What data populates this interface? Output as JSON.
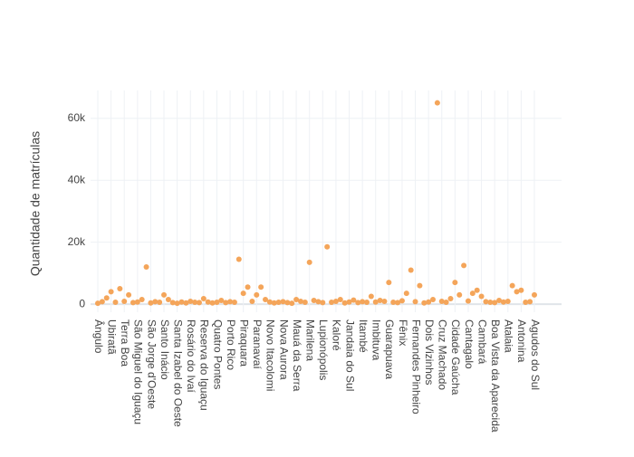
{
  "chart_data": {
    "type": "scatter",
    "y_label": "Quantidade de matrículas",
    "categories": [
      "Ângulo",
      null,
      null,
      "Ubiratã",
      null,
      null,
      "Terra Boa",
      null,
      null,
      "São Miguel do Iguaçu",
      null,
      null,
      "São Jorge d'Oeste",
      null,
      null,
      "Santo Inácio",
      null,
      null,
      "Santa Izabel do Oeste",
      null,
      null,
      "Rosário do Ivaí",
      null,
      null,
      "Reserva do Iguaçu",
      null,
      null,
      "Quatro Pontes",
      null,
      null,
      "Porto Rico",
      null,
      null,
      "Piraquara",
      null,
      null,
      "Paranavaí",
      null,
      null,
      "Novo Itacolomi",
      null,
      null,
      "Nova Aurora",
      null,
      null,
      "Mauá da Serra",
      null,
      null,
      "Marilena",
      null,
      null,
      "Lupionópolis",
      null,
      null,
      "Kaloré",
      null,
      null,
      "Jandaia do Sul",
      null,
      null,
      "Itambé",
      null,
      null,
      "Imbituva",
      null,
      null,
      "Guarapuava",
      null,
      null,
      "Fênix",
      null,
      null,
      "Fernandes Pinheiro",
      null,
      null,
      "Dois Vizinhos",
      null,
      null,
      "Cruz Machado",
      null,
      null,
      "Cidade Gaúcha",
      null,
      null,
      "Cantagalo",
      null,
      null,
      "Cambará",
      null,
      null,
      "Boa Vista da Aparecida",
      null,
      null,
      "Atalaia",
      null,
      null,
      "Antonina",
      null,
      null,
      "Agudos do Sul"
    ],
    "values": [
      300,
      800,
      2000,
      4000,
      600,
      5000,
      900,
      3000,
      500,
      700,
      1500,
      12000,
      400,
      800,
      600,
      3000,
      1500,
      500,
      300,
      700,
      400,
      900,
      600,
      500,
      1800,
      700,
      400,
      600,
      1200,
      500,
      800,
      600,
      14500,
      3500,
      5500,
      900,
      3000,
      5500,
      1500,
      700,
      400,
      600,
      800,
      500,
      300,
      1500,
      900,
      600,
      13500,
      1200,
      800,
      500,
      18500,
      600,
      900,
      1500,
      400,
      700,
      1300,
      500,
      800,
      600,
      2500,
      700,
      1200,
      900,
      7000,
      600,
      500,
      1100,
      3500,
      11000,
      800,
      6000,
      400,
      700,
      1500,
      65000,
      900,
      600,
      1800,
      7000,
      3000,
      12500,
      1000,
      3500,
      4500,
      2500,
      800,
      600,
      500,
      1200,
      700,
      900,
      6000,
      4000,
      4500,
      600,
      800,
      3000
    ],
    "color": "#f4a55a",
    "ylim": [
      -2600,
      69000
    ],
    "yticks": [
      0,
      {
        "value": 20000,
        "label": "20k"
      },
      {
        "value": 40000,
        "label": "40k"
      },
      {
        "value": 60000,
        "label": "60k"
      }
    ],
    "grid": true
  }
}
